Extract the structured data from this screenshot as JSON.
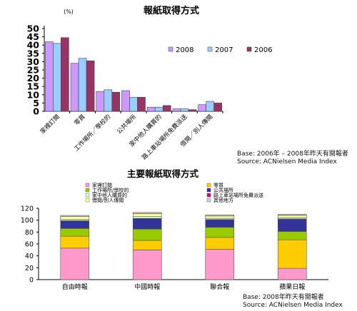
{
  "chart_data": [
    {
      "type": "bar",
      "title": "報紙取得方式",
      "ylabel": "(%)",
      "ylim": [
        0,
        50
      ],
      "yticks": [
        0,
        5,
        10,
        15,
        20,
        25,
        30,
        35,
        40,
        45,
        50
      ],
      "grid": false,
      "legend_position": "top-right",
      "categories": [
        "家裡訂閱",
        "零買",
        "工作場所／學校的",
        "公共場所",
        "家中他人購買的",
        "路上車站場所免費派送",
        "借閱／別人傳閱"
      ],
      "series": [
        {
          "name": "2008",
          "color": "#cc99ff",
          "values": [
            42,
            29,
            12,
            12.5,
            2.5,
            1.5,
            4
          ]
        },
        {
          "name": "2007",
          "color": "#99ccff",
          "values": [
            41,
            32,
            13,
            8.5,
            2.5,
            1.5,
            6
          ]
        },
        {
          "name": "2006",
          "color": "#993366",
          "values": [
            44.5,
            30.5,
            11.5,
            8.5,
            3.5,
            1,
            5
          ]
        }
      ],
      "source": [
        "Base: 2006年 – 2008年昨天有閱報者",
        "Source: ACNielsen Media Index"
      ]
    },
    {
      "type": "bar",
      "stacked": true,
      "title": "主要報紙取得方式",
      "ylim": [
        0,
        120
      ],
      "yticks": [
        0,
        20,
        40,
        60,
        80,
        100,
        120
      ],
      "grid": false,
      "legend_position": "top",
      "categories": [
        "自由時報",
        "中國時報",
        "聯合報",
        "蘋果日報"
      ],
      "series": [
        {
          "name": "家裡訂閱",
          "color": "#ff99cc",
          "values": [
            53,
            50,
            51,
            19
          ]
        },
        {
          "name": "零買",
          "color": "#ffcc00",
          "values": [
            20,
            16,
            20,
            48
          ]
        },
        {
          "name": "工作場所/學校的",
          "color": "#99cc00",
          "values": [
            13,
            19,
            17,
            14
          ]
        },
        {
          "name": "公共場所",
          "color": "#333399",
          "values": [
            13,
            18,
            13,
            21
          ]
        },
        {
          "name": "家中他人購買的",
          "color": "#ccffcc",
          "values": [
            2,
            3,
            2,
            2
          ]
        },
        {
          "name": "路上車站場所免費派送",
          "color": "#cc0099",
          "values": [
            0,
            0,
            0,
            0
          ]
        },
        {
          "name": "借閱/別人傳閱",
          "color": "#ffff99",
          "values": [
            5,
            5,
            4,
            4
          ]
        },
        {
          "name": "其他地方",
          "color": "#d0d0d0",
          "values": [
            2,
            2,
            2,
            2
          ]
        }
      ],
      "source": [
        "Base: 2008年昨天有閱報者",
        "Source: ACNielsen Media Index"
      ]
    }
  ]
}
